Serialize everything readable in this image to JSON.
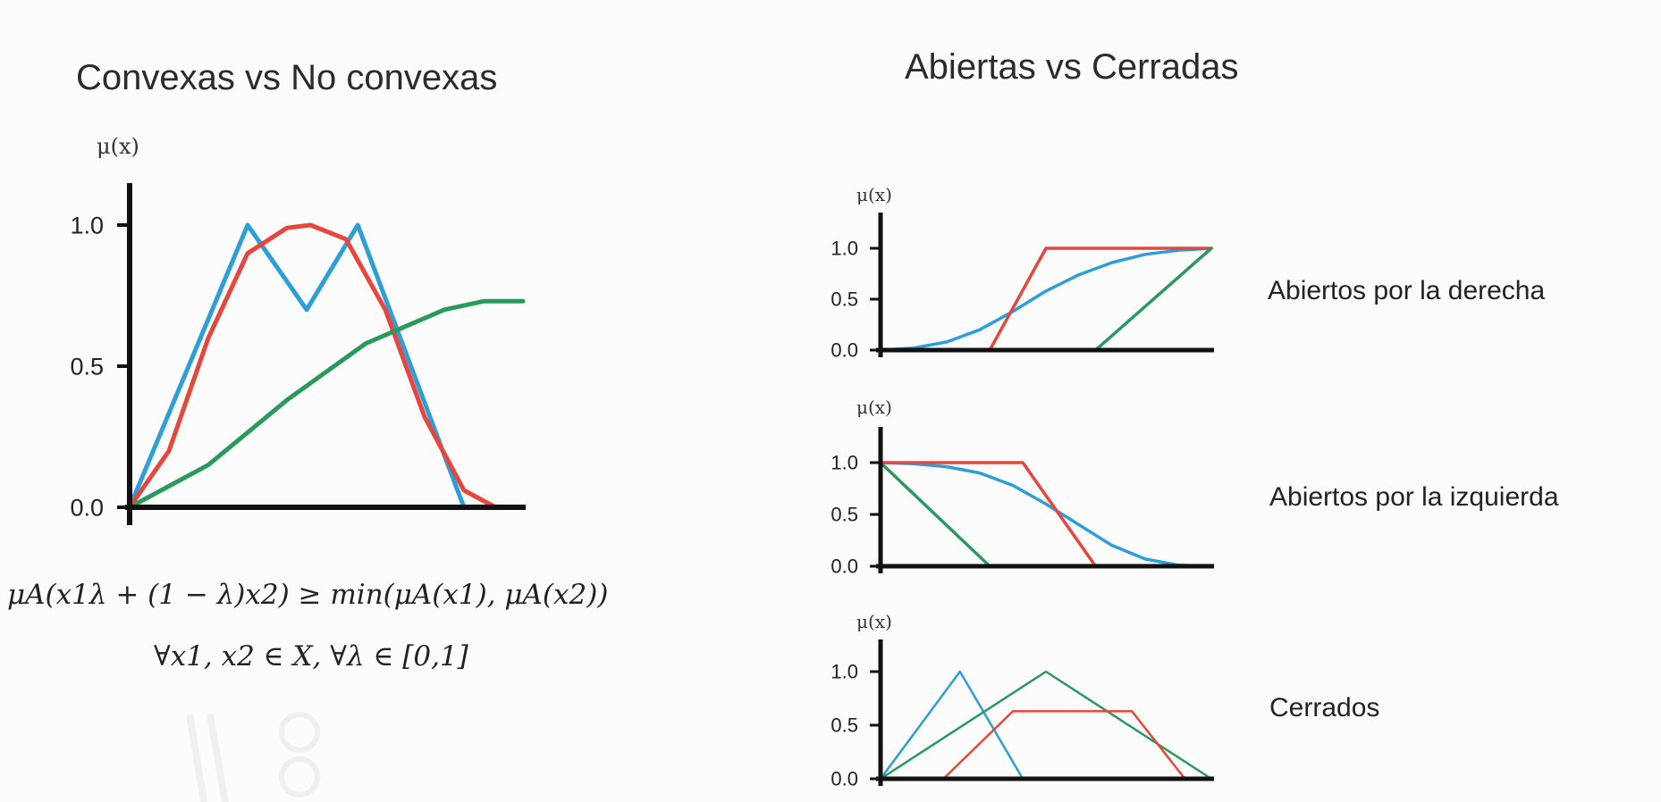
{
  "colors": {
    "blue": "#2c9fd9",
    "red": "#e8453c",
    "green": "#2a9a5c",
    "axis": "#111111",
    "text": "#222222"
  },
  "left_panel": {
    "title": "Convexas vs No convexas",
    "y_axis_label": "μ(x)",
    "y_ticks": [
      "1.0",
      "0.5",
      "0.0"
    ],
    "formula_line1": "μA(x1λ + (1 − λ)x2) ≥ min(μA(x1), μA(x2))",
    "formula_line2": "∀x1, x2 ∈ X, ∀λ ∈ [0,1]"
  },
  "right_panel": {
    "title": "Abiertas vs Cerradas",
    "plots": [
      {
        "y_axis_label": "μ(x)",
        "y_ticks": [
          "1.0",
          "0.5",
          "0.0"
        ],
        "label": "Abiertos por la derecha"
      },
      {
        "y_axis_label": "μ(x)",
        "y_ticks": [
          "1.0",
          "0.5",
          "0.0"
        ],
        "label": "Abiertos por la izquierda"
      },
      {
        "y_axis_label": "μ(x)",
        "y_ticks": [
          "1.0",
          "0.5",
          "0.0"
        ],
        "label": "Cerrados"
      }
    ]
  },
  "chart_data": [
    {
      "type": "line",
      "title": "Convexas vs No convexas",
      "ylabel": "μ(x)",
      "xlim": [
        0,
        10
      ],
      "ylim": [
        0,
        1.1
      ],
      "series": [
        {
          "color": "blue",
          "x": [
            0,
            3,
            4.5,
            5.8,
            8.5,
            10
          ],
          "y": [
            0,
            1.0,
            0.7,
            1.0,
            0,
            0
          ]
        },
        {
          "color": "red",
          "x": [
            0,
            1,
            2,
            3,
            4,
            4.6,
            5.5,
            6.5,
            7.5,
            8.5,
            9.3,
            10
          ],
          "y": [
            0,
            0.2,
            0.6,
            0.9,
            0.99,
            1.0,
            0.95,
            0.7,
            0.32,
            0.06,
            0.0,
            0.0
          ]
        },
        {
          "color": "green",
          "x": [
            0,
            2,
            4,
            6,
            8,
            9,
            10
          ],
          "y": [
            0,
            0.15,
            0.38,
            0.58,
            0.7,
            0.73,
            0.73
          ]
        }
      ]
    },
    {
      "type": "line",
      "subtitle": "Abiertos por la derecha",
      "ylabel": "μ(x)",
      "xlim": [
        0,
        10
      ],
      "ylim": [
        0,
        1.25
      ],
      "series": [
        {
          "color": "blue",
          "x": [
            0,
            1,
            2,
            3,
            4,
            5,
            6,
            7,
            8,
            9,
            10
          ],
          "y": [
            0,
            0.02,
            0.08,
            0.2,
            0.38,
            0.58,
            0.74,
            0.86,
            0.94,
            0.98,
            1.0
          ]
        },
        {
          "color": "red",
          "x": [
            0,
            3.3,
            5,
            10
          ],
          "y": [
            0,
            0,
            1.0,
            1.0
          ]
        },
        {
          "color": "green",
          "x": [
            0,
            6.5,
            10
          ],
          "y": [
            0,
            0,
            1.0
          ]
        }
      ]
    },
    {
      "type": "line",
      "subtitle": "Abiertos por la izquierda",
      "ylabel": "μ(x)",
      "xlim": [
        0,
        10
      ],
      "ylim": [
        0,
        1.25
      ],
      "series": [
        {
          "color": "blue",
          "x": [
            0,
            1,
            2,
            3,
            4,
            5,
            6,
            7,
            8,
            9,
            10
          ],
          "y": [
            1.0,
            0.99,
            0.96,
            0.9,
            0.78,
            0.6,
            0.4,
            0.2,
            0.07,
            0.01,
            0
          ]
        },
        {
          "color": "red",
          "x": [
            0,
            4.3,
            6.5,
            10
          ],
          "y": [
            1.0,
            1.0,
            0,
            0
          ]
        },
        {
          "color": "green",
          "x": [
            0,
            3.3,
            10
          ],
          "y": [
            1.0,
            0,
            0
          ]
        }
      ]
    },
    {
      "type": "line",
      "subtitle": "Cerrados",
      "ylabel": "μ(x)",
      "xlim": [
        0,
        10
      ],
      "ylim": [
        0,
        1.25
      ],
      "series": [
        {
          "color": "blue",
          "x": [
            0,
            2.4,
            4.3,
            10
          ],
          "y": [
            0,
            1.0,
            0,
            0
          ]
        },
        {
          "color": "green",
          "x": [
            0,
            5,
            10
          ],
          "y": [
            0,
            1.0,
            0
          ]
        },
        {
          "color": "red",
          "x": [
            0,
            1.9,
            4.0,
            7.6,
            9.2,
            10
          ],
          "y": [
            0,
            0,
            0.63,
            0.63,
            0,
            0
          ]
        }
      ]
    }
  ]
}
